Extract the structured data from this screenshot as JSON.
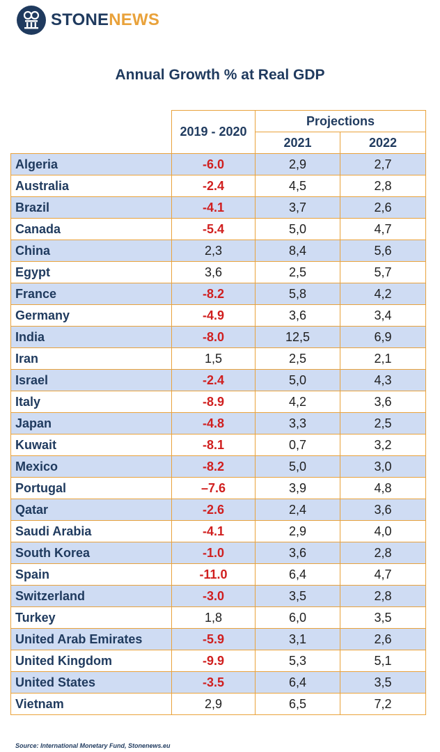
{
  "brand": {
    "name_part1": "STONE",
    "name_part2": "NEWS",
    "logo_icon": "columns-monogram-icon"
  },
  "colors": {
    "navy": "#1f3a5e",
    "accent_orange": "#e9a23b",
    "negative_red": "#d01f1f",
    "row_shade": "#cfdcf3"
  },
  "title": "Annual Growth % at Real GDP",
  "table": {
    "header_period": "2019 - 2020",
    "header_projections": "Projections",
    "header_year1": "2021",
    "header_year2": "2022",
    "rows": [
      {
        "country": "Algeria",
        "g2020": "-6.0",
        "g2021": "2,9",
        "g2022": "2,7"
      },
      {
        "country": "Australia",
        "g2020": "-2.4",
        "g2021": "4,5",
        "g2022": "2,8"
      },
      {
        "country": "Brazil",
        "g2020": "-4.1",
        "g2021": "3,7",
        "g2022": "2,6"
      },
      {
        "country": "Canada",
        "g2020": "-5.4",
        "g2021": "5,0",
        "g2022": "4,7"
      },
      {
        "country": "China",
        "g2020": "2,3",
        "g2021": "8,4",
        "g2022": "5,6"
      },
      {
        "country": "Egypt",
        "g2020": "3,6",
        "g2021": "2,5",
        "g2022": "5,7"
      },
      {
        "country": "France",
        "g2020": "-8.2",
        "g2021": "5,8",
        "g2022": "4,2"
      },
      {
        "country": "Germany",
        "g2020": "-4.9",
        "g2021": "3,6",
        "g2022": "3,4"
      },
      {
        "country": "India",
        "g2020": "-8.0",
        "g2021": "12,5",
        "g2022": "6,9"
      },
      {
        "country": "Iran",
        "g2020": "1,5",
        "g2021": "2,5",
        "g2022": "2,1"
      },
      {
        "country": "Israel",
        "g2020": "-2.4",
        "g2021": "5,0",
        "g2022": "4,3"
      },
      {
        "country": "Italy",
        "g2020": "-8.9",
        "g2021": "4,2",
        "g2022": "3,6"
      },
      {
        "country": "Japan",
        "g2020": "-4.8",
        "g2021": "3,3",
        "g2022": "2,5"
      },
      {
        "country": "Kuwait",
        "g2020": "-8.1",
        "g2021": "0,7",
        "g2022": "3,2"
      },
      {
        "country": "Mexico",
        "g2020": "-8.2",
        "g2021": "5,0",
        "g2022": "3,0"
      },
      {
        "country": "Portugal",
        "g2020": "–7.6",
        "g2021": "3,9",
        "g2022": "4,8"
      },
      {
        "country": "Qatar",
        "g2020": "-2.6",
        "g2021": "2,4",
        "g2022": "3,6"
      },
      {
        "country": "Saudi Arabia",
        "g2020": "-4.1",
        "g2021": "2,9",
        "g2022": "4,0"
      },
      {
        "country": "South Korea",
        "g2020": "-1.0",
        "g2021": "3,6",
        "g2022": "2,8"
      },
      {
        "country": "Spain",
        "g2020": "-11.0",
        "g2021": "6,4",
        "g2022": "4,7"
      },
      {
        "country": "Switzerland",
        "g2020": "-3.0",
        "g2021": "3,5",
        "g2022": "2,8"
      },
      {
        "country": "Turkey",
        "g2020": "1,8",
        "g2021": "6,0",
        "g2022": "3,5"
      },
      {
        "country": "United Arab Emirates",
        "g2020": "-5.9",
        "g2021": "3,1",
        "g2022": "2,6"
      },
      {
        "country": "United Kingdom",
        "g2020": "-9.9",
        "g2021": "5,3",
        "g2022": "5,1"
      },
      {
        "country": "United States",
        "g2020": "-3.5",
        "g2021": "6,4",
        "g2022": "3,5"
      },
      {
        "country": "Vietnam",
        "g2020": "2,9",
        "g2021": "6,5",
        "g2022": "7,2"
      }
    ]
  },
  "source": "Source: International Monetary Fund, Stonenews.eu"
}
